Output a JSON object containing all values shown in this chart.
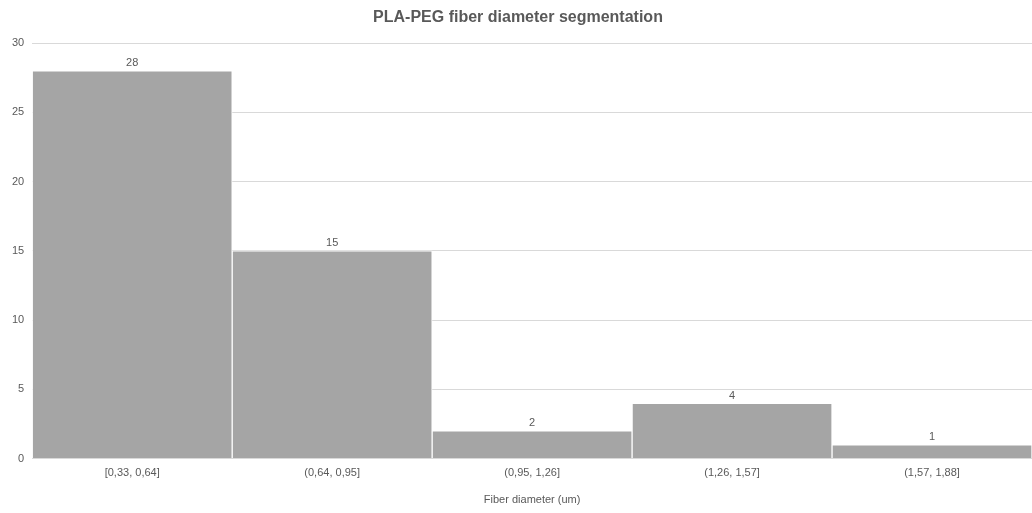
{
  "chart_data": {
    "type": "bar",
    "title": "PLA-PEG fiber diameter segmentation",
    "xlabel": "Fiber diameter (um)",
    "categories": [
      "[0,33, 0,64]",
      "(0,64, 0,95]",
      "(0,95, 1,26]",
      "(1,26, 1,57]",
      "(1,57, 1,88]"
    ],
    "values": [
      28,
      15,
      2,
      4,
      1
    ],
    "color": "#a5a5a5",
    "ylim": [
      0,
      30
    ],
    "yticks": [
      0,
      5,
      10,
      15,
      20,
      25,
      30
    ],
    "grid": "y",
    "legend": false,
    "data_labels": true
  }
}
